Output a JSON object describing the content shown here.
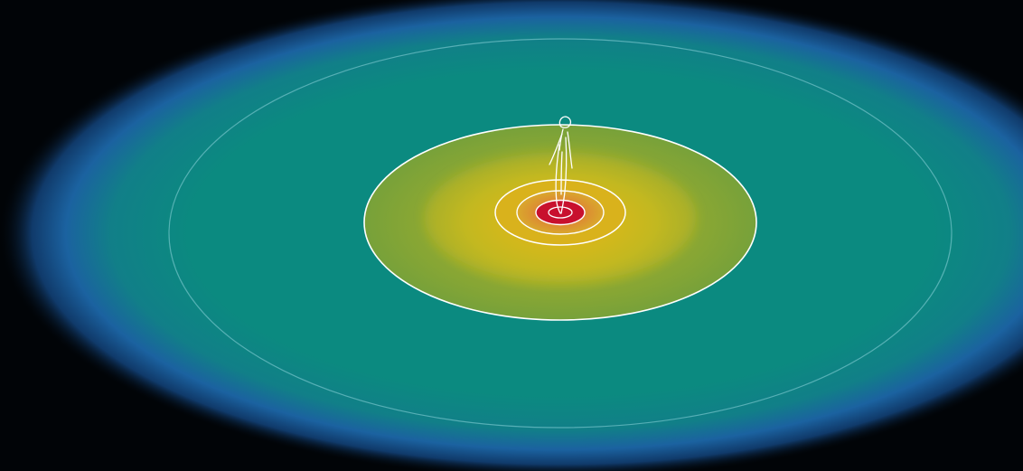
{
  "diagram": {
    "colors": {
      "background": "#010407",
      "outer_halo": "#1b5e9e",
      "teal_field": "#0a8a80",
      "olive_region": "#7aa23a",
      "yellow_glow": "#c8bb1c",
      "orange_ring": "#e0a22a",
      "core_red": "#c8102e",
      "contour_line": "#ffffff"
    },
    "icons": {
      "figure": "standing-figure-icon"
    }
  }
}
